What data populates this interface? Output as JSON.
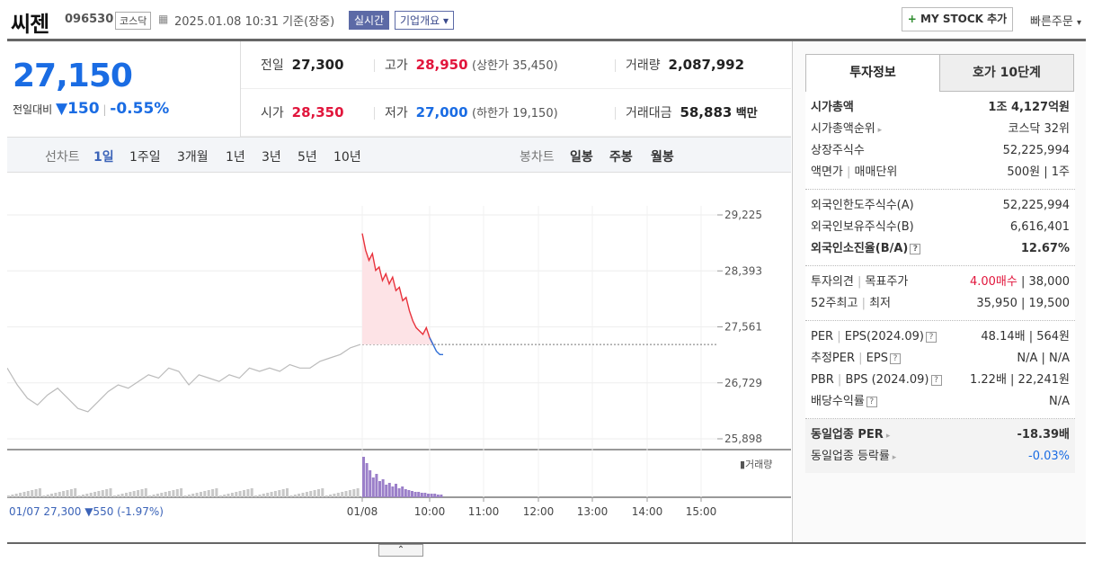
{
  "header": {
    "name": "씨젠",
    "code": "096530",
    "market": "코스닥",
    "datetime": "2025.01.08 10:31",
    "basis": "기준(장중)",
    "realtime_label": "실시간",
    "overview_label": "기업개요",
    "mystock_label": "MY STOCK 추가",
    "quick_order_label": "빠른주문"
  },
  "price": {
    "current": "27,150",
    "change_label": "전일대비",
    "change": "150",
    "change_pct": "-0.55%"
  },
  "stats": {
    "prev_label": "전일",
    "prev": "27,300",
    "high_label": "고가",
    "high": "28,950",
    "upper_limit": "(상한가 35,450)",
    "volume_label": "거래량",
    "volume": "2,087,992",
    "open_label": "시가",
    "open": "28,350",
    "low_label": "저가",
    "low": "27,000",
    "lower_limit": "(하한가 19,150)",
    "amount_label": "거래대금",
    "amount": "58,883",
    "amount_unit": "백만"
  },
  "chart_bar": {
    "line_label": "선차트",
    "periods": [
      "1일",
      "1주일",
      "3개월",
      "1년",
      "3년",
      "5년",
      "10년"
    ],
    "candle_label": "봉차트",
    "candles": [
      "일봉",
      "주봉",
      "월봉"
    ]
  },
  "chart_data": {
    "type": "line",
    "y_ticks": [
      "29,225",
      "28,393",
      "27,561",
      "26,729",
      "25,898"
    ],
    "ylim": [
      25898,
      29225
    ],
    "x_ticks": [
      "01/08",
      "10:00",
      "11:00",
      "12:00",
      "13:00",
      "14:00",
      "15:00"
    ],
    "prev_close": 27300,
    "prev_day_summary": "01/07  27,300 ▼550 (-1.97%)",
    "volume_legend": "거래량",
    "series": [
      {
        "name": "01/07",
        "values": [
          26950,
          26700,
          26500,
          26400,
          26550,
          26650,
          26500,
          26350,
          26300,
          26450,
          26600,
          26700,
          26650,
          26750,
          26850,
          26800,
          26950,
          26900,
          26700,
          26850,
          26800,
          26750,
          26850,
          26800,
          26950,
          26900,
          26950,
          26900,
          27000,
          26950,
          26950,
          27050,
          27100,
          27150,
          27250,
          27300
        ]
      },
      {
        "name": "01/08",
        "values": [
          28950,
          28700,
          28550,
          28650,
          28400,
          28450,
          28250,
          28350,
          28200,
          28300,
          28100,
          28150,
          27950,
          28000,
          27800,
          27650,
          27550,
          27500,
          27450,
          27550,
          27400,
          27300,
          27200,
          27150,
          27150
        ]
      }
    ]
  },
  "right_panel": {
    "tab_active": "투자정보",
    "tab_inactive": "호가 10단계",
    "groups": [
      [
        {
          "k": "시가총액",
          "v": "1조 4,127억원",
          "bold": true
        },
        {
          "k": "시가총액순위",
          "v": "코스닥 32위"
        },
        {
          "k": "상장주식수",
          "v": "52,225,994"
        },
        {
          "k": "액면가 | 매매단위",
          "v": "500원 | 1주"
        }
      ],
      [
        {
          "k": "외국인한도주식수(A)",
          "v": "52,225,994"
        },
        {
          "k": "외국인보유주식수(B)",
          "v": "6,616,401"
        },
        {
          "k": "외국인소진율(B/A)",
          "v": "12.67%",
          "bold": true
        }
      ],
      [
        {
          "k": "투자의견 | 목표주가",
          "v_red": "4.00매수",
          "v": " | 38,000"
        },
        {
          "k": "52주최고 | 최저",
          "v": "35,950 | 19,500"
        }
      ],
      [
        {
          "k": "PER | EPS(2024.09)",
          "v": "48.14배 | 564원"
        },
        {
          "k": "추정PER | EPS",
          "v": "N/A | N/A"
        },
        {
          "k": "PBR | BPS (2024.09)",
          "v": "1.22배 | 22,241원"
        },
        {
          "k": "배당수익률",
          "v": "N/A"
        }
      ],
      [
        {
          "k": "동일업종 PER",
          "v": "-18.39배",
          "bold": true
        },
        {
          "k": "동일업종 등락률",
          "v_blue": "-0.03%"
        }
      ]
    ]
  }
}
